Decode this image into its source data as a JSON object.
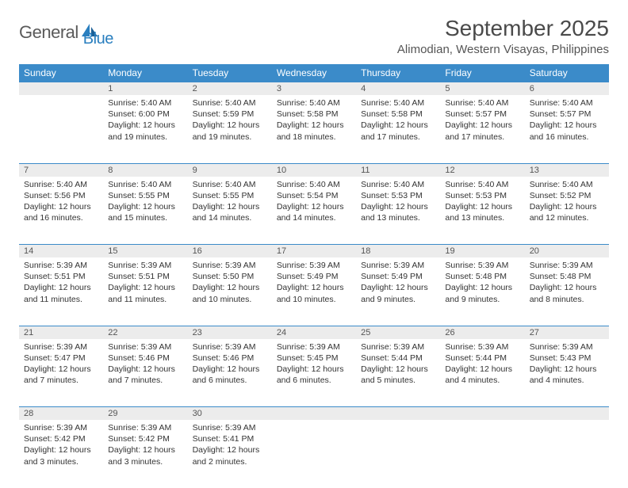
{
  "logo": {
    "text1": "General",
    "text2": "Blue"
  },
  "title": "September 2025",
  "location": "Alimodian, Western Visayas, Philippines",
  "colors": {
    "header_bg": "#3b8bc9",
    "header_text": "#ffffff",
    "daynum_bg": "#ececec",
    "border": "#3b8bc9",
    "logo_gray": "#5a5a5a",
    "logo_blue": "#2a7fbf",
    "text": "#333333"
  },
  "weekdays": [
    "Sunday",
    "Monday",
    "Tuesday",
    "Wednesday",
    "Thursday",
    "Friday",
    "Saturday"
  ],
  "layout": {
    "start_offset": 1,
    "days_in_month": 30,
    "columns": 7,
    "rows": 5
  },
  "days": [
    {
      "n": 1,
      "sunrise": "5:40 AM",
      "sunset": "6:00 PM",
      "daylight": "12 hours and 19 minutes."
    },
    {
      "n": 2,
      "sunrise": "5:40 AM",
      "sunset": "5:59 PM",
      "daylight": "12 hours and 19 minutes."
    },
    {
      "n": 3,
      "sunrise": "5:40 AM",
      "sunset": "5:58 PM",
      "daylight": "12 hours and 18 minutes."
    },
    {
      "n": 4,
      "sunrise": "5:40 AM",
      "sunset": "5:58 PM",
      "daylight": "12 hours and 17 minutes."
    },
    {
      "n": 5,
      "sunrise": "5:40 AM",
      "sunset": "5:57 PM",
      "daylight": "12 hours and 17 minutes."
    },
    {
      "n": 6,
      "sunrise": "5:40 AM",
      "sunset": "5:57 PM",
      "daylight": "12 hours and 16 minutes."
    },
    {
      "n": 7,
      "sunrise": "5:40 AM",
      "sunset": "5:56 PM",
      "daylight": "12 hours and 16 minutes."
    },
    {
      "n": 8,
      "sunrise": "5:40 AM",
      "sunset": "5:55 PM",
      "daylight": "12 hours and 15 minutes."
    },
    {
      "n": 9,
      "sunrise": "5:40 AM",
      "sunset": "5:55 PM",
      "daylight": "12 hours and 14 minutes."
    },
    {
      "n": 10,
      "sunrise": "5:40 AM",
      "sunset": "5:54 PM",
      "daylight": "12 hours and 14 minutes."
    },
    {
      "n": 11,
      "sunrise": "5:40 AM",
      "sunset": "5:53 PM",
      "daylight": "12 hours and 13 minutes."
    },
    {
      "n": 12,
      "sunrise": "5:40 AM",
      "sunset": "5:53 PM",
      "daylight": "12 hours and 13 minutes."
    },
    {
      "n": 13,
      "sunrise": "5:40 AM",
      "sunset": "5:52 PM",
      "daylight": "12 hours and 12 minutes."
    },
    {
      "n": 14,
      "sunrise": "5:39 AM",
      "sunset": "5:51 PM",
      "daylight": "12 hours and 11 minutes."
    },
    {
      "n": 15,
      "sunrise": "5:39 AM",
      "sunset": "5:51 PM",
      "daylight": "12 hours and 11 minutes."
    },
    {
      "n": 16,
      "sunrise": "5:39 AM",
      "sunset": "5:50 PM",
      "daylight": "12 hours and 10 minutes."
    },
    {
      "n": 17,
      "sunrise": "5:39 AM",
      "sunset": "5:49 PM",
      "daylight": "12 hours and 10 minutes."
    },
    {
      "n": 18,
      "sunrise": "5:39 AM",
      "sunset": "5:49 PM",
      "daylight": "12 hours and 9 minutes."
    },
    {
      "n": 19,
      "sunrise": "5:39 AM",
      "sunset": "5:48 PM",
      "daylight": "12 hours and 9 minutes."
    },
    {
      "n": 20,
      "sunrise": "5:39 AM",
      "sunset": "5:48 PM",
      "daylight": "12 hours and 8 minutes."
    },
    {
      "n": 21,
      "sunrise": "5:39 AM",
      "sunset": "5:47 PM",
      "daylight": "12 hours and 7 minutes."
    },
    {
      "n": 22,
      "sunrise": "5:39 AM",
      "sunset": "5:46 PM",
      "daylight": "12 hours and 7 minutes."
    },
    {
      "n": 23,
      "sunrise": "5:39 AM",
      "sunset": "5:46 PM",
      "daylight": "12 hours and 6 minutes."
    },
    {
      "n": 24,
      "sunrise": "5:39 AM",
      "sunset": "5:45 PM",
      "daylight": "12 hours and 6 minutes."
    },
    {
      "n": 25,
      "sunrise": "5:39 AM",
      "sunset": "5:44 PM",
      "daylight": "12 hours and 5 minutes."
    },
    {
      "n": 26,
      "sunrise": "5:39 AM",
      "sunset": "5:44 PM",
      "daylight": "12 hours and 4 minutes."
    },
    {
      "n": 27,
      "sunrise": "5:39 AM",
      "sunset": "5:43 PM",
      "daylight": "12 hours and 4 minutes."
    },
    {
      "n": 28,
      "sunrise": "5:39 AM",
      "sunset": "5:42 PM",
      "daylight": "12 hours and 3 minutes."
    },
    {
      "n": 29,
      "sunrise": "5:39 AM",
      "sunset": "5:42 PM",
      "daylight": "12 hours and 3 minutes."
    },
    {
      "n": 30,
      "sunrise": "5:39 AM",
      "sunset": "5:41 PM",
      "daylight": "12 hours and 2 minutes."
    }
  ],
  "labels": {
    "sunrise": "Sunrise:",
    "sunset": "Sunset:",
    "daylight": "Daylight:"
  }
}
